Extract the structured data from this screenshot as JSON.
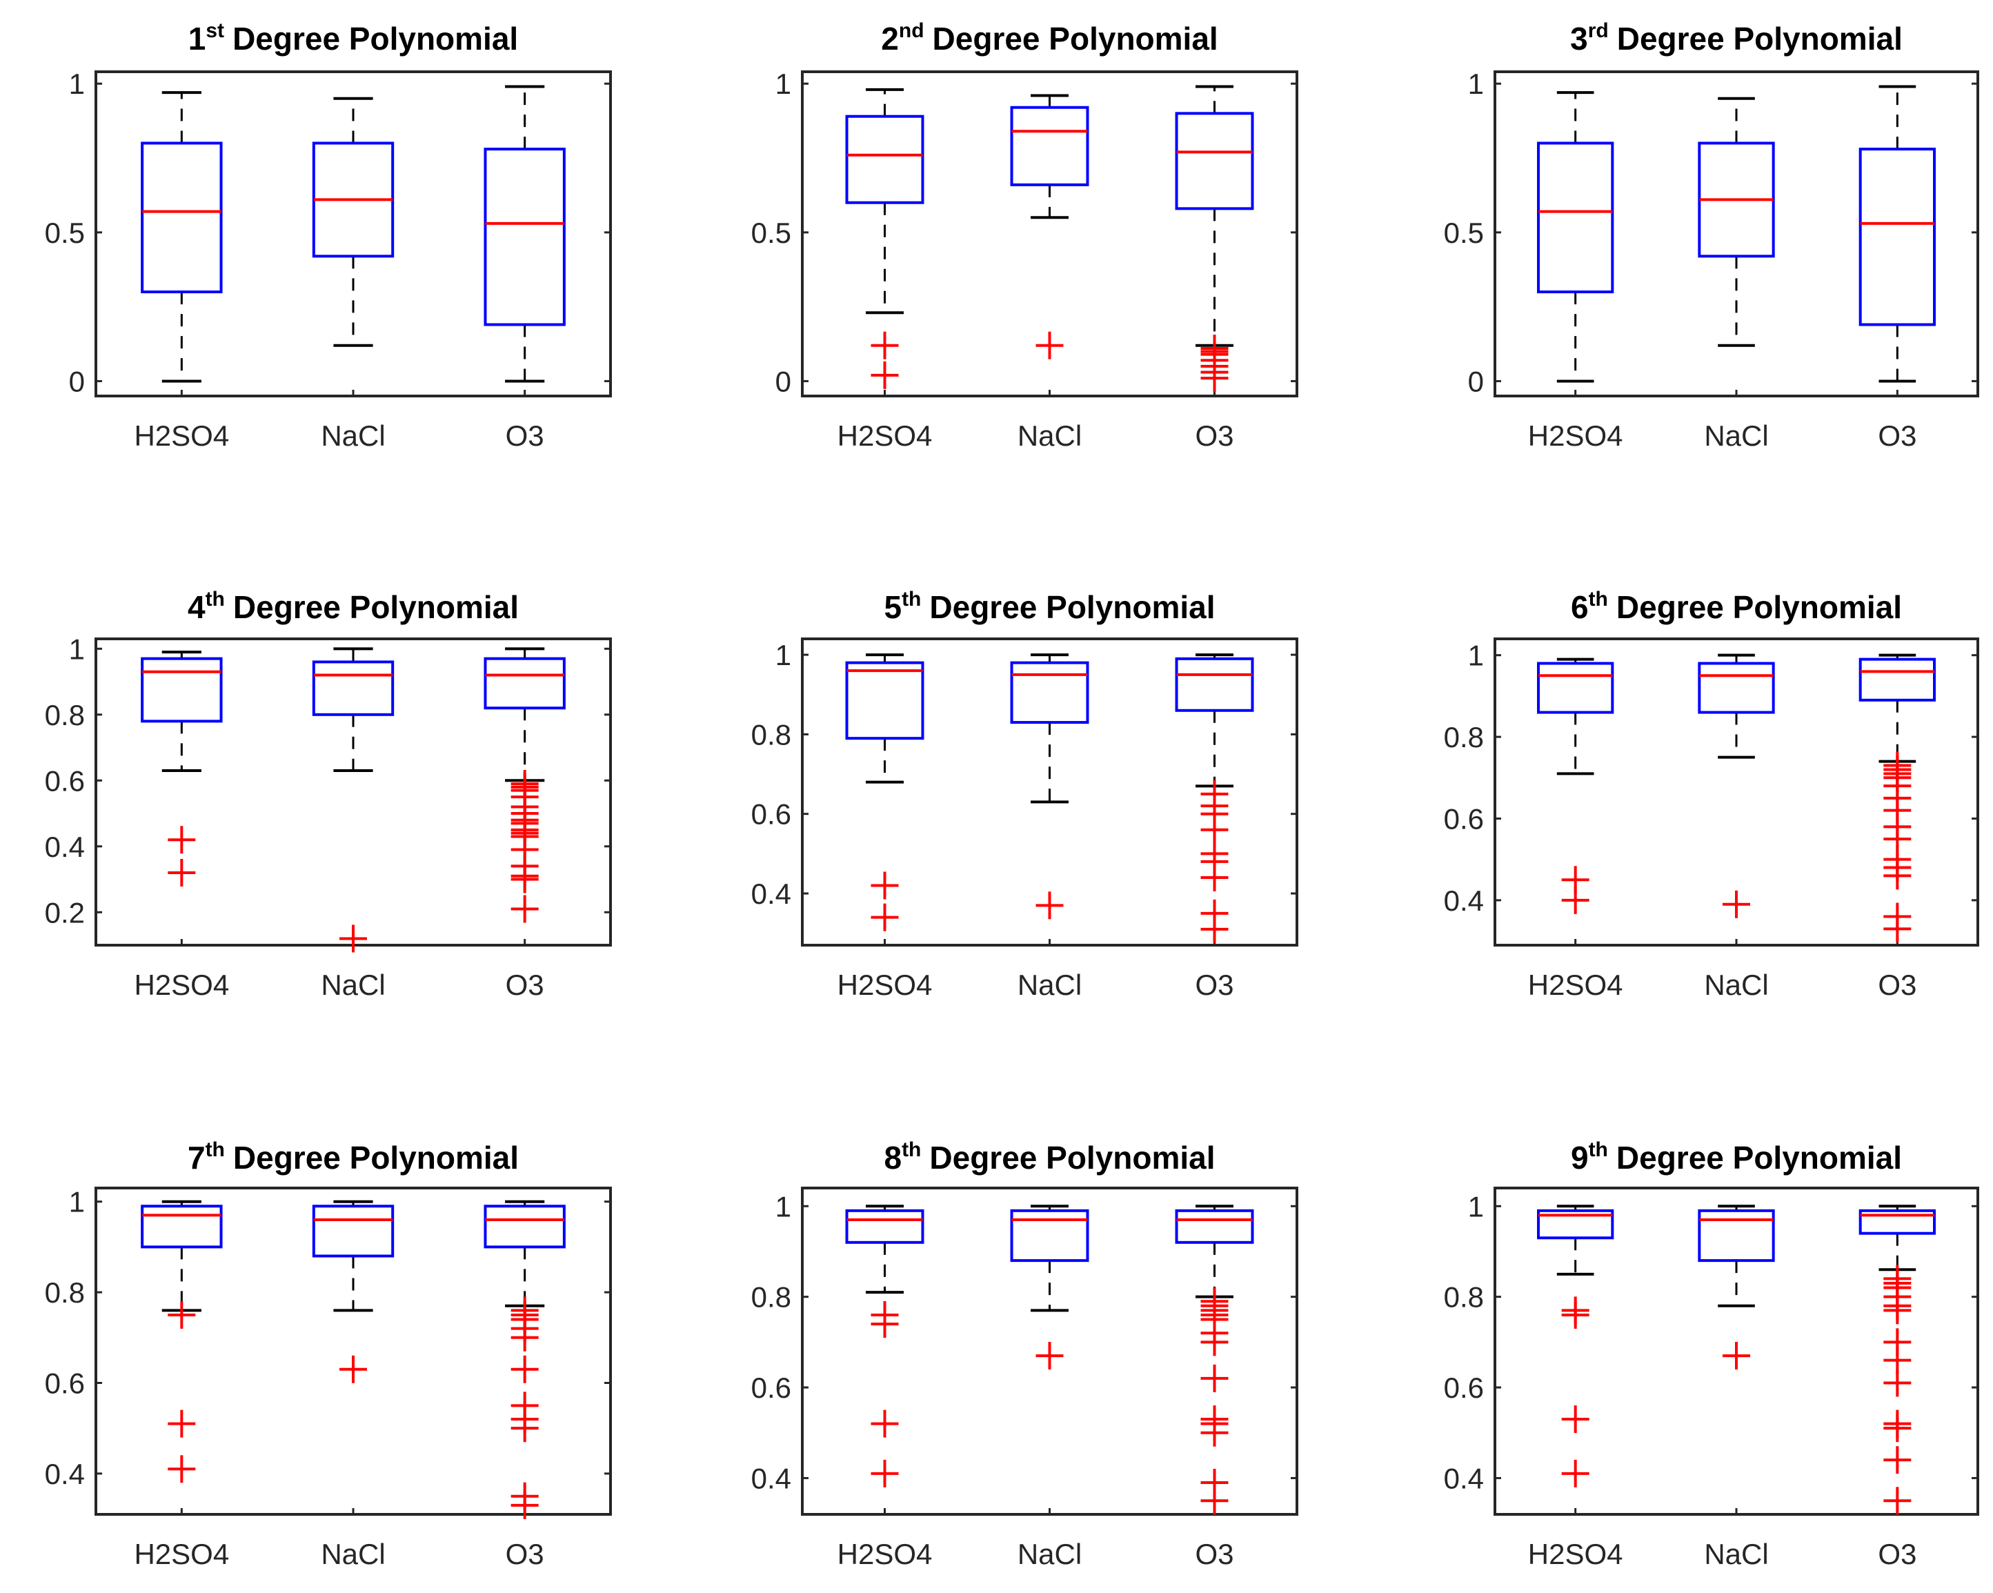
{
  "colors": {
    "box": "#0000ff",
    "median": "#ff0000",
    "whisker": "#000000",
    "outlier": "#ff0000",
    "axis": "#262626"
  },
  "chart_data": [
    {
      "type": "box",
      "title": {
        "num": "1",
        "sup": "st",
        "rest": "Degree Polynomial"
      },
      "categories": [
        "H2SO4",
        "NaCl",
        "O3"
      ],
      "ylim": [
        -0.05,
        1.04
      ],
      "yticks": [
        0,
        0.5,
        1
      ],
      "ytick_labels": [
        "0",
        "0.5",
        "1"
      ],
      "boxes": [
        {
          "low": 0,
          "q1": 0.3,
          "median": 0.57,
          "q3": 0.8,
          "high": 0.97,
          "outliers": []
        },
        {
          "low": 0.12,
          "q1": 0.42,
          "median": 0.61,
          "q3": 0.8,
          "high": 0.95,
          "outliers": []
        },
        {
          "low": 0,
          "q1": 0.19,
          "median": 0.53,
          "q3": 0.78,
          "high": 0.99,
          "outliers": []
        }
      ]
    },
    {
      "type": "box",
      "title": {
        "num": "2",
        "sup": "nd",
        "rest": "Degree Polynomial"
      },
      "categories": [
        "H2SO4",
        "NaCl",
        "O3"
      ],
      "ylim": [
        -0.05,
        1.04
      ],
      "yticks": [
        0,
        0.5,
        1
      ],
      "ytick_labels": [
        "0",
        "0.5",
        "1"
      ],
      "boxes": [
        {
          "low": 0.23,
          "q1": 0.6,
          "median": 0.76,
          "q3": 0.89,
          "high": 0.98,
          "outliers": [
            0.12,
            0.02
          ]
        },
        {
          "low": 0.55,
          "q1": 0.66,
          "median": 0.84,
          "q3": 0.92,
          "high": 0.96,
          "outliers": [
            0.12
          ]
        },
        {
          "low": 0.12,
          "q1": 0.58,
          "median": 0.77,
          "q3": 0.9,
          "high": 0.99,
          "outliers": [
            0.11,
            0.1,
            0.09,
            0.07,
            0.05,
            0.03,
            0.01
          ]
        }
      ]
    },
    {
      "type": "box",
      "title": {
        "num": "3",
        "sup": "rd",
        "rest": "Degree Polynomial"
      },
      "categories": [
        "H2SO4",
        "NaCl",
        "O3"
      ],
      "ylim": [
        -0.05,
        1.04
      ],
      "yticks": [
        0,
        0.5,
        1
      ],
      "ytick_labels": [
        "0",
        "0.5",
        "1"
      ],
      "boxes": [
        {
          "low": 0,
          "q1": 0.3,
          "median": 0.57,
          "q3": 0.8,
          "high": 0.97,
          "outliers": []
        },
        {
          "low": 0.12,
          "q1": 0.42,
          "median": 0.61,
          "q3": 0.8,
          "high": 0.95,
          "outliers": []
        },
        {
          "low": 0,
          "q1": 0.19,
          "median": 0.53,
          "q3": 0.78,
          "high": 0.99,
          "outliers": []
        }
      ]
    },
    {
      "type": "box",
      "title": {
        "num": "4",
        "sup": "th",
        "rest": "Degree Polynomial"
      },
      "categories": [
        "H2SO4",
        "NaCl",
        "O3"
      ],
      "ylim": [
        0.1,
        1.03
      ],
      "yticks": [
        0.2,
        0.4,
        0.6,
        0.8,
        1
      ],
      "ytick_labels": [
        "0.2",
        "0.4",
        "0.6",
        "0.8",
        "1"
      ],
      "boxes": [
        {
          "low": 0.63,
          "q1": 0.78,
          "median": 0.93,
          "q3": 0.97,
          "high": 0.99,
          "outliers": [
            0.42,
            0.32
          ]
        },
        {
          "low": 0.63,
          "q1": 0.8,
          "median": 0.92,
          "q3": 0.96,
          "high": 1.0,
          "outliers": [
            0.12
          ]
        },
        {
          "low": 0.6,
          "q1": 0.82,
          "median": 0.92,
          "q3": 0.97,
          "high": 1.0,
          "outliers": [
            0.59,
            0.58,
            0.57,
            0.55,
            0.52,
            0.5,
            0.48,
            0.47,
            0.45,
            0.44,
            0.43,
            0.39,
            0.34,
            0.31,
            0.3,
            0.21
          ]
        }
      ]
    },
    {
      "type": "box",
      "title": {
        "num": "5",
        "sup": "th",
        "rest": "Degree Polynomial"
      },
      "categories": [
        "H2SO4",
        "NaCl",
        "O3"
      ],
      "ylim": [
        0.27,
        1.04
      ],
      "yticks": [
        0.4,
        0.6,
        0.8,
        1
      ],
      "ytick_labels": [
        "0.4",
        "0.6",
        "0.8",
        "1"
      ],
      "boxes": [
        {
          "low": 0.68,
          "q1": 0.79,
          "median": 0.96,
          "q3": 0.98,
          "high": 1.0,
          "outliers": [
            0.42,
            0.34
          ]
        },
        {
          "low": 0.63,
          "q1": 0.83,
          "median": 0.95,
          "q3": 0.98,
          "high": 1.0,
          "outliers": [
            0.37
          ]
        },
        {
          "low": 0.67,
          "q1": 0.86,
          "median": 0.95,
          "q3": 0.99,
          "high": 1.0,
          "outliers": [
            0.65,
            0.62,
            0.6,
            0.56,
            0.5,
            0.48,
            0.44,
            0.35,
            0.31
          ]
        }
      ]
    },
    {
      "type": "box",
      "title": {
        "num": "6",
        "sup": "th",
        "rest": "Degree Polynomial"
      },
      "categories": [
        "H2SO4",
        "NaCl",
        "O3"
      ],
      "ylim": [
        0.29,
        1.04
      ],
      "yticks": [
        0.4,
        0.6,
        0.8,
        1
      ],
      "ytick_labels": [
        "0.4",
        "0.6",
        "0.8",
        "1"
      ],
      "boxes": [
        {
          "low": 0.71,
          "q1": 0.86,
          "median": 0.95,
          "q3": 0.98,
          "high": 0.99,
          "outliers": [
            0.45,
            0.4
          ]
        },
        {
          "low": 0.75,
          "q1": 0.86,
          "median": 0.95,
          "q3": 0.98,
          "high": 1.0,
          "outliers": [
            0.39
          ]
        },
        {
          "low": 0.74,
          "q1": 0.89,
          "median": 0.96,
          "q3": 0.99,
          "high": 1.0,
          "outliers": [
            0.73,
            0.72,
            0.71,
            0.7,
            0.68,
            0.65,
            0.62,
            0.58,
            0.55,
            0.5,
            0.48,
            0.46,
            0.36,
            0.33
          ]
        }
      ]
    },
    {
      "type": "box",
      "title": {
        "num": "7",
        "sup": "th",
        "rest": "Degree Polynomial"
      },
      "categories": [
        "H2SO4",
        "NaCl",
        "O3"
      ],
      "ylim": [
        0.31,
        1.03
      ],
      "yticks": [
        0.4,
        0.6,
        0.8,
        1
      ],
      "ytick_labels": [
        "0.4",
        "0.6",
        "0.8",
        "1"
      ],
      "boxes": [
        {
          "low": 0.76,
          "q1": 0.9,
          "median": 0.97,
          "q3": 0.99,
          "high": 1.0,
          "outliers": [
            0.75,
            0.51,
            0.41
          ]
        },
        {
          "low": 0.76,
          "q1": 0.88,
          "median": 0.96,
          "q3": 0.99,
          "high": 1.0,
          "outliers": [
            0.63
          ]
        },
        {
          "low": 0.77,
          "q1": 0.9,
          "median": 0.96,
          "q3": 0.99,
          "high": 1.0,
          "outliers": [
            0.76,
            0.75,
            0.74,
            0.72,
            0.7,
            0.63,
            0.55,
            0.52,
            0.5,
            0.35,
            0.33
          ]
        }
      ]
    },
    {
      "type": "box",
      "title": {
        "num": "8",
        "sup": "th",
        "rest": "Degree Polynomial"
      },
      "categories": [
        "H2SO4",
        "NaCl",
        "O3"
      ],
      "ylim": [
        0.32,
        1.04
      ],
      "yticks": [
        0.4,
        0.6,
        0.8,
        1
      ],
      "ytick_labels": [
        "0.4",
        "0.6",
        "0.8",
        "1"
      ],
      "boxes": [
        {
          "low": 0.81,
          "q1": 0.92,
          "median": 0.97,
          "q3": 0.99,
          "high": 1.0,
          "outliers": [
            0.76,
            0.74,
            0.52,
            0.41
          ]
        },
        {
          "low": 0.77,
          "q1": 0.88,
          "median": 0.97,
          "q3": 0.99,
          "high": 1.0,
          "outliers": [
            0.67
          ]
        },
        {
          "low": 0.8,
          "q1": 0.92,
          "median": 0.97,
          "q3": 0.99,
          "high": 1.0,
          "outliers": [
            0.79,
            0.78,
            0.77,
            0.76,
            0.75,
            0.72,
            0.7,
            0.62,
            0.53,
            0.52,
            0.5,
            0.39,
            0.35
          ]
        }
      ]
    },
    {
      "type": "box",
      "title": {
        "num": "9",
        "sup": "th",
        "rest": "Degree Polynomial"
      },
      "categories": [
        "H2SO4",
        "NaCl",
        "O3"
      ],
      "ylim": [
        0.32,
        1.04
      ],
      "yticks": [
        0.4,
        0.6,
        0.8,
        1
      ],
      "ytick_labels": [
        "0.4",
        "0.6",
        "0.8",
        "1"
      ],
      "boxes": [
        {
          "low": 0.85,
          "q1": 0.93,
          "median": 0.98,
          "q3": 0.99,
          "high": 1.0,
          "outliers": [
            0.77,
            0.76,
            0.53,
            0.41
          ]
        },
        {
          "low": 0.78,
          "q1": 0.88,
          "median": 0.97,
          "q3": 0.99,
          "high": 1.0,
          "outliers": [
            0.67
          ]
        },
        {
          "low": 0.86,
          "q1": 0.94,
          "median": 0.98,
          "q3": 0.99,
          "high": 1.0,
          "outliers": [
            0.84,
            0.83,
            0.82,
            0.8,
            0.78,
            0.77,
            0.7,
            0.66,
            0.61,
            0.52,
            0.51,
            0.44,
            0.35
          ]
        }
      ]
    }
  ]
}
